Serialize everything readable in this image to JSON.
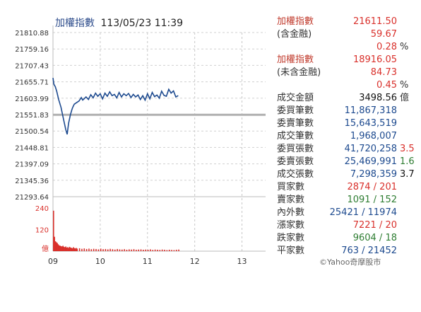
{
  "header": {
    "title": "加權指數",
    "datetime": "113/05/23 11:39"
  },
  "colors": {
    "red": "#d9302b",
    "green": "#2e7d32",
    "blue": "#1d4a8f",
    "dark": "#111111",
    "label_red": "#c0392b",
    "label_dark": "#333333"
  },
  "stats": [
    {
      "label": "加權指數",
      "value": "21611.50",
      "extra": "",
      "label_color": "label_red",
      "value_color": "red"
    },
    {
      "label": "(含金融)",
      "value": "59.67",
      "extra": "",
      "label_color": "label_dark",
      "value_color": "red"
    },
    {
      "label": "",
      "value": "0.28",
      "extra": "%",
      "label_color": "label_dark",
      "value_color": "red"
    },
    {
      "label": "加權指數",
      "value": "18916.05",
      "extra": "",
      "label_color": "label_red",
      "value_color": "red"
    },
    {
      "label": "(未含金融)",
      "value": "84.73",
      "extra": "",
      "label_color": "label_dark",
      "value_color": "red"
    },
    {
      "label": "",
      "value": "0.45",
      "extra": "%",
      "label_color": "label_dark",
      "value_color": "red"
    },
    {
      "label": "成交金額",
      "value": "3498.56",
      "extra": "億",
      "label_color": "label_dark",
      "value_color": "dark"
    },
    {
      "label": "委買筆數",
      "value": "11,867,318",
      "extra": "",
      "label_color": "label_dark",
      "value_color": "blue"
    },
    {
      "label": "委賣筆數",
      "value": "15,643,519",
      "extra": "",
      "label_color": "label_dark",
      "value_color": "blue"
    },
    {
      "label": "成交筆數",
      "value": "1,968,007",
      "extra": "",
      "label_color": "label_dark",
      "value_color": "blue"
    },
    {
      "label": "委買張數",
      "value": "41,720,258",
      "extra": "3.5",
      "label_color": "label_dark",
      "value_color": "blue",
      "extra_color": "red"
    },
    {
      "label": "委賣張數",
      "value": "25,469,991",
      "extra": "1.6",
      "label_color": "label_dark",
      "value_color": "blue",
      "extra_color": "green"
    },
    {
      "label": "成交張數",
      "value": "7,298,359",
      "extra": "3.7",
      "label_color": "label_dark",
      "value_color": "blue",
      "extra_color": "dark"
    },
    {
      "label": "買家數",
      "value": "2874 / 201",
      "extra": "",
      "label_color": "label_dark",
      "value_color": "red"
    },
    {
      "label": "賣家數",
      "value": "1091 / 152",
      "extra": "",
      "label_color": "label_dark",
      "value_color": "green"
    },
    {
      "label": "內外數",
      "value": "25421 / 11974",
      "extra": "",
      "label_color": "label_dark",
      "value_color": "blue"
    },
    {
      "label": "漲家數",
      "value": "7221 / 20",
      "extra": "",
      "label_color": "label_dark",
      "value_color": "red"
    },
    {
      "label": "跌家數",
      "value": "9604 / 18",
      "extra": "",
      "label_color": "label_dark",
      "value_color": "green"
    },
    {
      "label": "平家數",
      "value": "763 / 21452",
      "extra": "",
      "label_color": "label_dark",
      "value_color": "blue"
    }
  ],
  "credit": "©Yahoo奇摩股市",
  "chart_data": [
    {
      "type": "line",
      "series": [
        {
          "color": "#1d4a8f",
          "x": [
            9.0,
            9.02,
            9.05,
            9.08,
            9.12,
            9.17,
            9.22,
            9.27,
            9.3,
            9.33,
            9.37,
            9.4,
            9.42,
            9.45,
            9.5,
            9.55,
            9.6,
            9.63,
            9.7,
            9.75,
            9.8,
            9.85,
            9.9,
            9.95,
            10.0,
            10.05,
            10.1,
            10.15,
            10.2,
            10.25,
            10.3,
            10.35,
            10.4,
            10.45,
            10.5,
            10.55,
            10.6,
            10.65,
            10.7,
            10.75,
            10.8,
            10.85,
            10.9,
            10.95,
            11.0,
            11.05,
            11.1,
            11.15,
            11.2,
            11.25,
            11.3,
            11.35,
            11.4,
            11.45,
            11.5,
            11.55,
            11.6,
            11.65
          ],
          "values": [
            21668,
            21648,
            21640,
            21625,
            21600,
            21575,
            21540,
            21505,
            21490,
            21525,
            21552,
            21568,
            21576,
            21585,
            21590,
            21595,
            21606,
            21598,
            21608,
            21600,
            21615,
            21605,
            21620,
            21610,
            21618,
            21602,
            21620,
            21610,
            21624,
            21612,
            21616,
            21605,
            21622,
            21608,
            21618,
            21612,
            21619,
            21606,
            21616,
            21608,
            21614,
            21600,
            21612,
            21598,
            21618,
            21602,
            21622,
            21609,
            21614,
            21604,
            21626,
            21613,
            21610,
            21632,
            21620,
            21627,
            21608,
            21612
          ]
        }
      ],
      "reference_line": {
        "value": 21551.83,
        "color": "#b0b0b0"
      },
      "yticks": [
        "21810.88",
        "21759.16",
        "21707.43",
        "21655.71",
        "21603.99",
        "21551.83",
        "21500.54",
        "21448.81",
        "21397.09",
        "21345.36",
        "21293.64"
      ],
      "ylim": [
        21293.64,
        21810.88
      ],
      "xlim": [
        9,
        13.5
      ],
      "grid": true
    },
    {
      "type": "bar",
      "color": "#d9302b",
      "yticks": [
        "240",
        "120"
      ],
      "unit_label": "億",
      "ylim": [
        0,
        240
      ],
      "xticks": [
        "09",
        "10",
        "11",
        "12",
        "13"
      ],
      "xtick_values": [
        9,
        10,
        11,
        12,
        13
      ],
      "x": [
        9.0,
        9.02,
        9.04,
        9.06,
        9.08,
        9.1,
        9.12,
        9.14,
        9.16,
        9.18,
        9.2,
        9.22,
        9.24,
        9.26,
        9.28,
        9.3,
        9.32,
        9.34,
        9.36,
        9.38,
        9.4,
        9.42,
        9.44,
        9.46,
        9.48,
        9.5,
        9.55,
        9.6,
        9.65,
        9.7,
        9.75,
        9.8,
        9.85,
        9.9,
        9.95,
        10.0,
        10.05,
        10.1,
        10.15,
        10.2,
        10.25,
        10.3,
        10.35,
        10.4,
        10.45,
        10.5,
        10.55,
        10.6,
        10.65,
        10.7,
        10.75,
        10.8,
        10.85,
        10.9,
        10.95,
        11.0,
        11.05,
        11.1,
        11.15,
        11.2,
        11.25,
        11.3,
        11.35,
        11.4,
        11.45,
        11.5,
        11.55,
        11.6,
        11.65
      ],
      "values": [
        225,
        80,
        55,
        50,
        45,
        38,
        32,
        30,
        28,
        26,
        30,
        24,
        22,
        26,
        20,
        22,
        18,
        24,
        20,
        18,
        16,
        22,
        17,
        15,
        18,
        14,
        16,
        13,
        15,
        12,
        14,
        11,
        13,
        12,
        10,
        14,
        11,
        12,
        10,
        13,
        11,
        9,
        12,
        10,
        9,
        11,
        8,
        10,
        9,
        11,
        8,
        9,
        10,
        8,
        9,
        8,
        10,
        7,
        9,
        8,
        7,
        9,
        8,
        6,
        8,
        7,
        6,
        8,
        9
      ]
    }
  ]
}
